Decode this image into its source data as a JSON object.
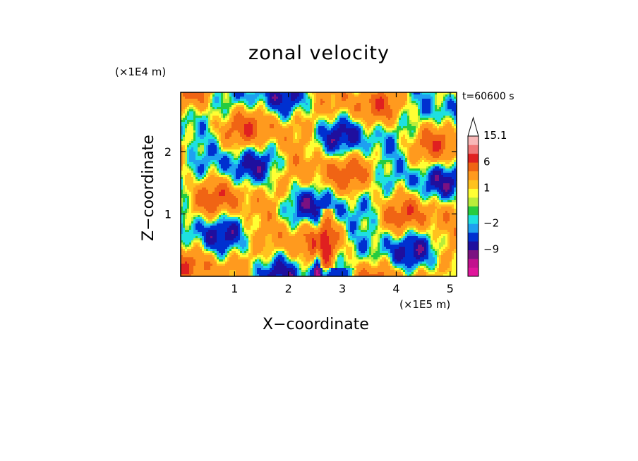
{
  "chart_data": {
    "type": "heatmap",
    "title": "zonal velocity",
    "xlabel": "X−coordinate",
    "ylabel": "Z−coordinate",
    "x_unit": "(×1E5 m)",
    "y_unit": "(×1E4 m)",
    "time_label": "t=60600 s",
    "xlim": [
      0,
      5.12
    ],
    "ylim": [
      0,
      2.95
    ],
    "x_ticks": [
      1,
      2,
      3,
      4,
      5
    ],
    "y_ticks": [
      1,
      2
    ],
    "colorbar": {
      "labels": [
        {
          "text": "15.1",
          "value": 15.1
        },
        {
          "text": "6",
          "value": 6
        },
        {
          "text": "1",
          "value": 1
        },
        {
          "text": "−2",
          "value": -2
        },
        {
          "text": "−9",
          "value": -9
        }
      ],
      "levels": [
        {
          "value": -15,
          "color": "#e0159b"
        },
        {
          "value": -12,
          "color": "#c2108e"
        },
        {
          "value": -9,
          "color": "#7b1181"
        },
        {
          "value": -6,
          "color": "#1f0f9e"
        },
        {
          "value": -4,
          "color": "#0030d0"
        },
        {
          "value": -2,
          "color": "#1ea0f0"
        },
        {
          "value": -1,
          "color": "#1ee0e0"
        },
        {
          "value": 0,
          "color": "#26cc40"
        },
        {
          "value": 0.5,
          "color": "#b9ed3a"
        },
        {
          "value": 1,
          "color": "#ffff33"
        },
        {
          "value": 2,
          "color": "#ffc21e"
        },
        {
          "value": 3,
          "color": "#ff9a1e"
        },
        {
          "value": 6,
          "color": "#f06414"
        },
        {
          "value": 9,
          "color": "#e02020"
        },
        {
          "value": 12,
          "color": "#f07878"
        },
        {
          "value": 15.1,
          "color": "#f8b8b8"
        }
      ],
      "extend_max": true
    },
    "grid": false,
    "legend": "colorbar-right"
  }
}
